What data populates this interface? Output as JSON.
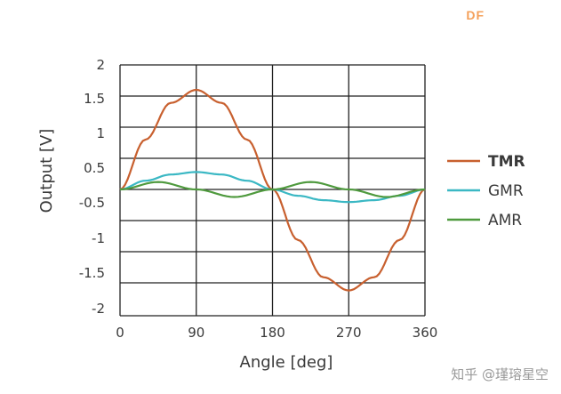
{
  "brand": "DF",
  "watermark": "知乎 @瑾瑢星空",
  "colors": {
    "TMR": "#c8602f",
    "GMR": "#3bb8c4",
    "AMR": "#4f9a3e",
    "grid": "#222222"
  },
  "chart_data": {
    "type": "line",
    "xlabel": "Angle [deg]",
    "ylabel": "Output [V]",
    "x_ticks": [
      "0",
      "90",
      "180",
      "270",
      "360"
    ],
    "x_tick_values": [
      0,
      90,
      180,
      270,
      360
    ],
    "xlim": [
      0,
      360
    ],
    "y_tick_labels": [
      "2",
      "1.5",
      "1",
      "0.5",
      "-0.5",
      "-1",
      "-1.5",
      "-2"
    ],
    "legend_position": "right",
    "grid": true,
    "series": [
      {
        "name": "TMR",
        "color": "#c8602f",
        "bold": true,
        "x": [
          0,
          30,
          60,
          90,
          120,
          150,
          180,
          210,
          240,
          270,
          300,
          330,
          360
        ],
        "values": [
          0,
          0.8,
          1.39,
          1.6,
          1.39,
          0.8,
          0,
          -0.8,
          -1.39,
          -1.6,
          -1.39,
          -0.8,
          0
        ]
      },
      {
        "name": "GMR",
        "color": "#3bb8c4",
        "bold": false,
        "x": [
          0,
          30,
          60,
          90,
          120,
          150,
          180,
          210,
          240,
          270,
          300,
          330,
          360
        ],
        "values": [
          0,
          0.14,
          0.24,
          0.28,
          0.24,
          0.14,
          0,
          -0.1,
          -0.17,
          -0.2,
          -0.17,
          -0.1,
          0
        ]
      },
      {
        "name": "AMR",
        "color": "#4f9a3e",
        "bold": false,
        "x": [
          0,
          45,
          90,
          135,
          180,
          225,
          270,
          315,
          360
        ],
        "values": [
          0,
          0.12,
          0,
          -0.12,
          0,
          0.12,
          0,
          -0.12,
          0
        ]
      }
    ]
  }
}
